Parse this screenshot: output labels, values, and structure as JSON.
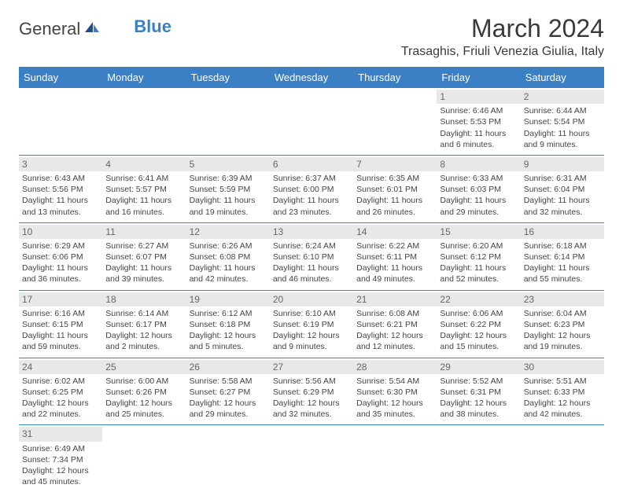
{
  "logo": {
    "text1": "General",
    "text2": "Blue"
  },
  "title": "March 2024",
  "location": "Trasaghis, Friuli Venezia Giulia, Italy",
  "colors": {
    "header_bg": "#3b7fc4",
    "header_fg": "#ffffff",
    "border": "#3b7fc4",
    "daynum_bg": "#e8e8e8"
  },
  "weekdays": [
    "Sunday",
    "Monday",
    "Tuesday",
    "Wednesday",
    "Thursday",
    "Friday",
    "Saturday"
  ],
  "weeks": [
    [
      null,
      null,
      null,
      null,
      null,
      {
        "d": "1",
        "sr": "Sunrise: 6:46 AM",
        "ss": "Sunset: 5:53 PM",
        "dl1": "Daylight: 11 hours",
        "dl2": "and 6 minutes."
      },
      {
        "d": "2",
        "sr": "Sunrise: 6:44 AM",
        "ss": "Sunset: 5:54 PM",
        "dl1": "Daylight: 11 hours",
        "dl2": "and 9 minutes."
      }
    ],
    [
      {
        "d": "3",
        "sr": "Sunrise: 6:43 AM",
        "ss": "Sunset: 5:56 PM",
        "dl1": "Daylight: 11 hours",
        "dl2": "and 13 minutes."
      },
      {
        "d": "4",
        "sr": "Sunrise: 6:41 AM",
        "ss": "Sunset: 5:57 PM",
        "dl1": "Daylight: 11 hours",
        "dl2": "and 16 minutes."
      },
      {
        "d": "5",
        "sr": "Sunrise: 6:39 AM",
        "ss": "Sunset: 5:59 PM",
        "dl1": "Daylight: 11 hours",
        "dl2": "and 19 minutes."
      },
      {
        "d": "6",
        "sr": "Sunrise: 6:37 AM",
        "ss": "Sunset: 6:00 PM",
        "dl1": "Daylight: 11 hours",
        "dl2": "and 23 minutes."
      },
      {
        "d": "7",
        "sr": "Sunrise: 6:35 AM",
        "ss": "Sunset: 6:01 PM",
        "dl1": "Daylight: 11 hours",
        "dl2": "and 26 minutes."
      },
      {
        "d": "8",
        "sr": "Sunrise: 6:33 AM",
        "ss": "Sunset: 6:03 PM",
        "dl1": "Daylight: 11 hours",
        "dl2": "and 29 minutes."
      },
      {
        "d": "9",
        "sr": "Sunrise: 6:31 AM",
        "ss": "Sunset: 6:04 PM",
        "dl1": "Daylight: 11 hours",
        "dl2": "and 32 minutes."
      }
    ],
    [
      {
        "d": "10",
        "sr": "Sunrise: 6:29 AM",
        "ss": "Sunset: 6:06 PM",
        "dl1": "Daylight: 11 hours",
        "dl2": "and 36 minutes."
      },
      {
        "d": "11",
        "sr": "Sunrise: 6:27 AM",
        "ss": "Sunset: 6:07 PM",
        "dl1": "Daylight: 11 hours",
        "dl2": "and 39 minutes."
      },
      {
        "d": "12",
        "sr": "Sunrise: 6:26 AM",
        "ss": "Sunset: 6:08 PM",
        "dl1": "Daylight: 11 hours",
        "dl2": "and 42 minutes."
      },
      {
        "d": "13",
        "sr": "Sunrise: 6:24 AM",
        "ss": "Sunset: 6:10 PM",
        "dl1": "Daylight: 11 hours",
        "dl2": "and 46 minutes."
      },
      {
        "d": "14",
        "sr": "Sunrise: 6:22 AM",
        "ss": "Sunset: 6:11 PM",
        "dl1": "Daylight: 11 hours",
        "dl2": "and 49 minutes."
      },
      {
        "d": "15",
        "sr": "Sunrise: 6:20 AM",
        "ss": "Sunset: 6:12 PM",
        "dl1": "Daylight: 11 hours",
        "dl2": "and 52 minutes."
      },
      {
        "d": "16",
        "sr": "Sunrise: 6:18 AM",
        "ss": "Sunset: 6:14 PM",
        "dl1": "Daylight: 11 hours",
        "dl2": "and 55 minutes."
      }
    ],
    [
      {
        "d": "17",
        "sr": "Sunrise: 6:16 AM",
        "ss": "Sunset: 6:15 PM",
        "dl1": "Daylight: 11 hours",
        "dl2": "and 59 minutes."
      },
      {
        "d": "18",
        "sr": "Sunrise: 6:14 AM",
        "ss": "Sunset: 6:17 PM",
        "dl1": "Daylight: 12 hours",
        "dl2": "and 2 minutes."
      },
      {
        "d": "19",
        "sr": "Sunrise: 6:12 AM",
        "ss": "Sunset: 6:18 PM",
        "dl1": "Daylight: 12 hours",
        "dl2": "and 5 minutes."
      },
      {
        "d": "20",
        "sr": "Sunrise: 6:10 AM",
        "ss": "Sunset: 6:19 PM",
        "dl1": "Daylight: 12 hours",
        "dl2": "and 9 minutes."
      },
      {
        "d": "21",
        "sr": "Sunrise: 6:08 AM",
        "ss": "Sunset: 6:21 PM",
        "dl1": "Daylight: 12 hours",
        "dl2": "and 12 minutes."
      },
      {
        "d": "22",
        "sr": "Sunrise: 6:06 AM",
        "ss": "Sunset: 6:22 PM",
        "dl1": "Daylight: 12 hours",
        "dl2": "and 15 minutes."
      },
      {
        "d": "23",
        "sr": "Sunrise: 6:04 AM",
        "ss": "Sunset: 6:23 PM",
        "dl1": "Daylight: 12 hours",
        "dl2": "and 19 minutes."
      }
    ],
    [
      {
        "d": "24",
        "sr": "Sunrise: 6:02 AM",
        "ss": "Sunset: 6:25 PM",
        "dl1": "Daylight: 12 hours",
        "dl2": "and 22 minutes."
      },
      {
        "d": "25",
        "sr": "Sunrise: 6:00 AM",
        "ss": "Sunset: 6:26 PM",
        "dl1": "Daylight: 12 hours",
        "dl2": "and 25 minutes."
      },
      {
        "d": "26",
        "sr": "Sunrise: 5:58 AM",
        "ss": "Sunset: 6:27 PM",
        "dl1": "Daylight: 12 hours",
        "dl2": "and 29 minutes."
      },
      {
        "d": "27",
        "sr": "Sunrise: 5:56 AM",
        "ss": "Sunset: 6:29 PM",
        "dl1": "Daylight: 12 hours",
        "dl2": "and 32 minutes."
      },
      {
        "d": "28",
        "sr": "Sunrise: 5:54 AM",
        "ss": "Sunset: 6:30 PM",
        "dl1": "Daylight: 12 hours",
        "dl2": "and 35 minutes."
      },
      {
        "d": "29",
        "sr": "Sunrise: 5:52 AM",
        "ss": "Sunset: 6:31 PM",
        "dl1": "Daylight: 12 hours",
        "dl2": "and 38 minutes."
      },
      {
        "d": "30",
        "sr": "Sunrise: 5:51 AM",
        "ss": "Sunset: 6:33 PM",
        "dl1": "Daylight: 12 hours",
        "dl2": "and 42 minutes."
      }
    ],
    [
      {
        "d": "31",
        "sr": "Sunrise: 6:49 AM",
        "ss": "Sunset: 7:34 PM",
        "dl1": "Daylight: 12 hours",
        "dl2": "and 45 minutes."
      },
      null,
      null,
      null,
      null,
      null,
      null
    ]
  ]
}
